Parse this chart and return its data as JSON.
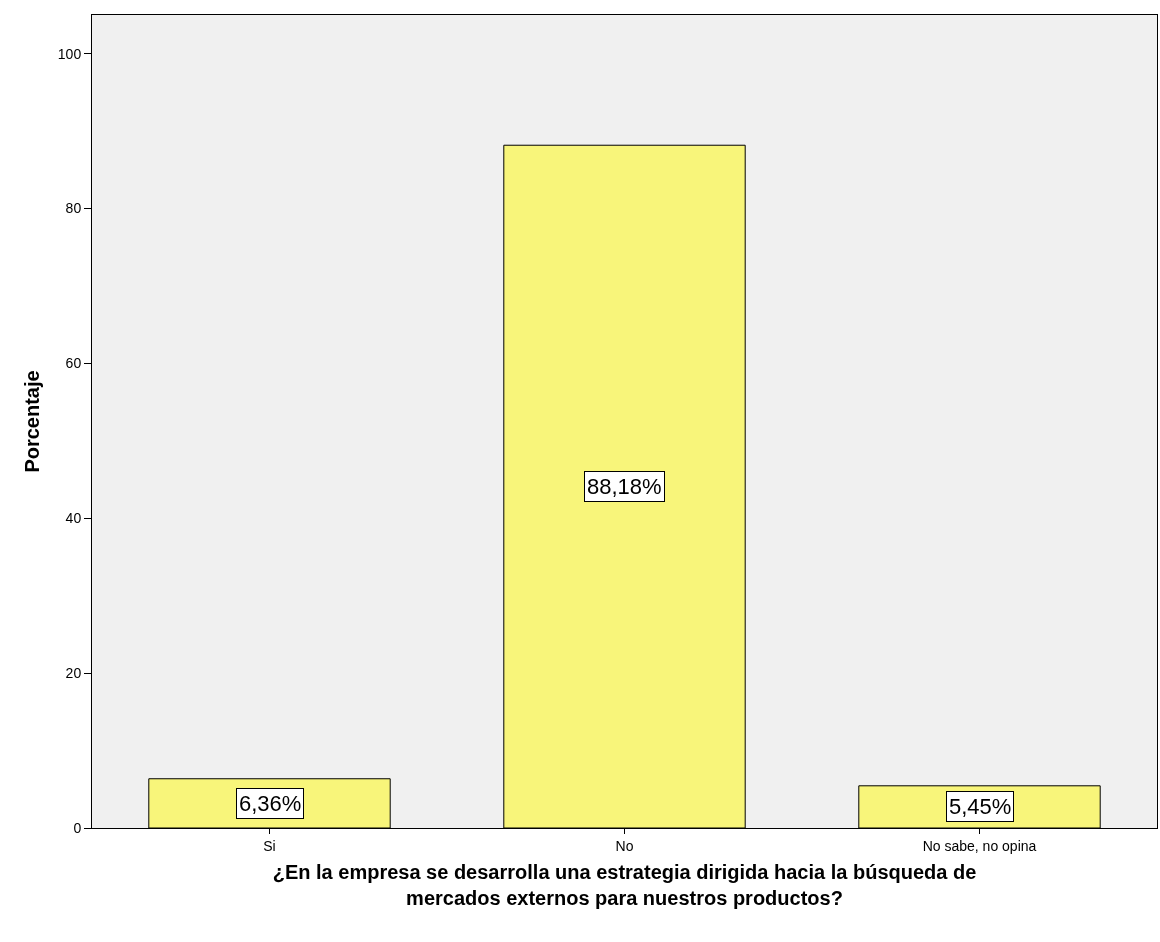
{
  "chart_data": {
    "type": "bar",
    "categories": [
      "Si",
      "No",
      "No sabe, no opina"
    ],
    "values": [
      6.36,
      88.18,
      5.45
    ],
    "value_labels": [
      "6,36%",
      "88,18%",
      "5,45%"
    ],
    "color": "#f8f57a",
    "xlabel": "¿En la empresa se desarrolla una estrategia dirigida hacia la búsqueda de mercados externos para nuestros productos?",
    "ylabel": "Porcentaje",
    "ylim": [
      0,
      105
    ],
    "yticks": [
      0,
      20,
      40,
      60,
      80,
      100
    ],
    "grid": false
  }
}
